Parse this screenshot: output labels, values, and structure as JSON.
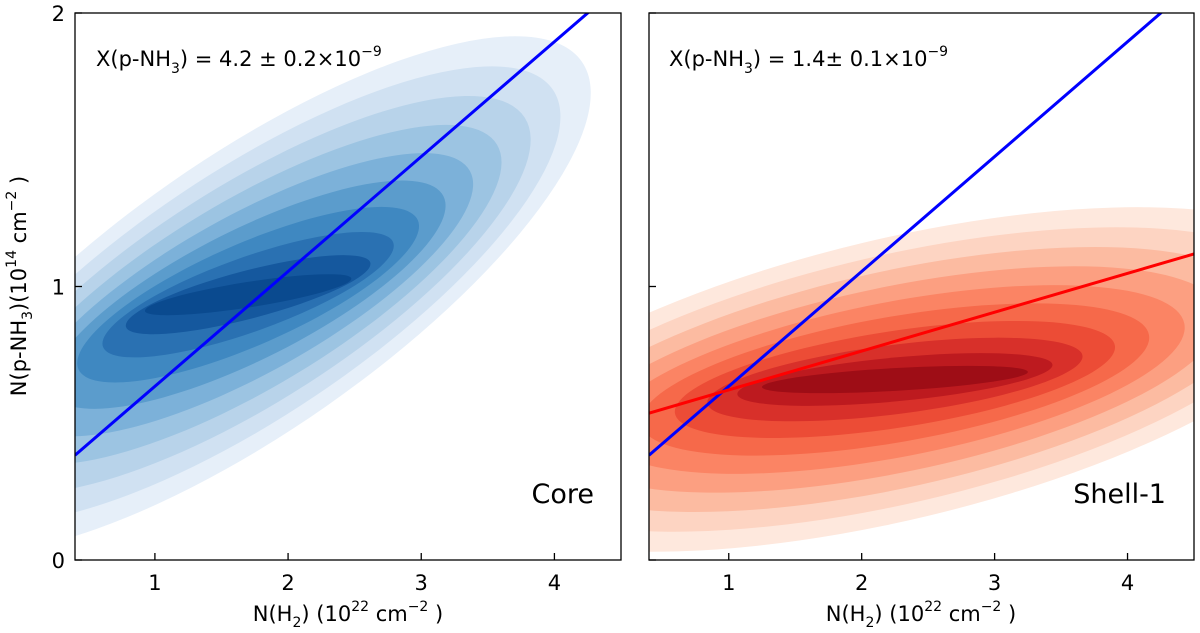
{
  "chart_data": [
    {
      "type": "contour",
      "panel_label": "Core",
      "panel_label_color": "#0000ff",
      "annotation": {
        "prefix": "X(p-NH",
        "sub": "3",
        "mid": ") = 4.2 ± 0.2×10",
        "sup": "−9"
      },
      "xlabel": {
        "prefix": "N(H",
        "sub": "2",
        "mid": ") (10",
        "sup": "22",
        "suffix": " cm",
        "sup2": "−2",
        "end": " )"
      },
      "ylabel": {
        "prefix": "N(p-NH",
        "sub": "3",
        "mid": ")(10",
        "sup": "14",
        "suffix": " cm",
        "sup2": "−2",
        "end": " )"
      },
      "xlim": [
        0.4,
        4.5
      ],
      "ylim": [
        0,
        2
      ],
      "xticks": [
        1,
        2,
        3,
        4
      ],
      "yticks": [
        0,
        1,
        2
      ],
      "palette": [
        "#e6eff9",
        "#d0e1f2",
        "#b8d3ea",
        "#9cc4e2",
        "#7cb1d9",
        "#5b9ccc",
        "#3f88c1",
        "#2a71b2",
        "#15589e",
        "#0a4a8f"
      ],
      "density": {
        "cx": 1.7,
        "cy": 0.97,
        "sx": 0.62,
        "sy": 0.3,
        "rho": 0.78,
        "sx_max": 3.6,
        "sy_max": 0.5
      },
      "fit_lines": [
        {
          "name": "Core fit",
          "color": "#0000ff",
          "slope": 0.42,
          "intercept": 0.215
        }
      ]
    },
    {
      "type": "contour",
      "panel_label": "Shell-1",
      "panel_label_color": "#ff0000",
      "annotation": {
        "prefix": "X(p-NH",
        "sub": "3",
        "mid": ") = 1.4± 0.1×10",
        "sup": "−9"
      },
      "xlabel": {
        "prefix": "N(H",
        "sub": "2",
        "mid": ") (10",
        "sup": "22",
        "suffix": " cm",
        "sup2": "−2",
        "end": " )"
      },
      "xlim": [
        0.4,
        4.5
      ],
      "ylim": [
        0,
        2
      ],
      "xticks": [
        1,
        2,
        3,
        4
      ],
      "yticks": [
        0,
        1,
        2
      ],
      "palette": [
        "#fee8dd",
        "#fdd4c2",
        "#fcbba1",
        "#fc9f81",
        "#fb8464",
        "#f6694a",
        "#ec4c36",
        "#d8302a",
        "#bd1a1f",
        "#9e0d16"
      ],
      "density": {
        "cx": 2.25,
        "cy": 0.66,
        "sx": 0.8,
        "sy": 0.2,
        "rho": 0.55,
        "sx_max": 3.7,
        "sy_max": 0.6
      },
      "fit_lines": [
        {
          "name": "Core fit",
          "color": "#0000ff",
          "slope": 0.42,
          "intercept": 0.215
        },
        {
          "name": "Shell-1 fit",
          "color": "#ff0000",
          "slope": 0.142,
          "intercept": 0.48
        }
      ]
    }
  ]
}
